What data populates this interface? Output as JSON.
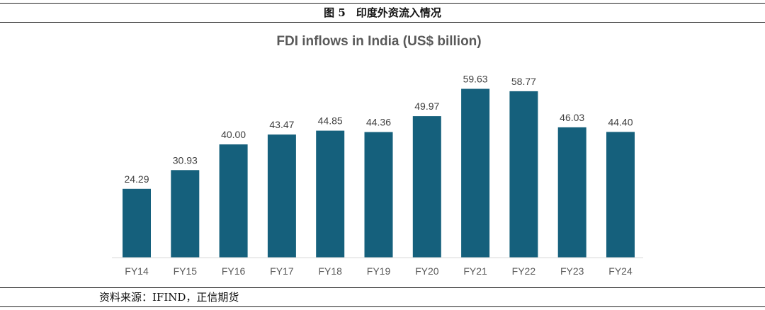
{
  "figure": {
    "caption": "图 5　印度外资流入情况",
    "source": "资料来源：IFIND，正信期货"
  },
  "colors": {
    "bar": "#15607c",
    "axis": "#d9d9d9"
  },
  "chart_data": {
    "type": "bar",
    "title": "FDI inflows in India (US$ billion)",
    "xlabel": "",
    "ylabel": "",
    "categories": [
      "FY14",
      "FY15",
      "FY16",
      "FY17",
      "FY18",
      "FY19",
      "FY20",
      "FY21",
      "FY22",
      "FY23",
      "FY24"
    ],
    "values": [
      24.29,
      30.93,
      40.0,
      43.47,
      44.85,
      44.36,
      49.97,
      59.63,
      58.77,
      46.03,
      44.4
    ],
    "value_labels": [
      "24.29",
      "30.93",
      "40.00",
      "43.47",
      "44.85",
      "44.36",
      "49.97",
      "59.63",
      "58.77",
      "46.03",
      "44.40"
    ],
    "ylim": [
      0,
      60
    ],
    "grid": false,
    "legend": "none"
  }
}
